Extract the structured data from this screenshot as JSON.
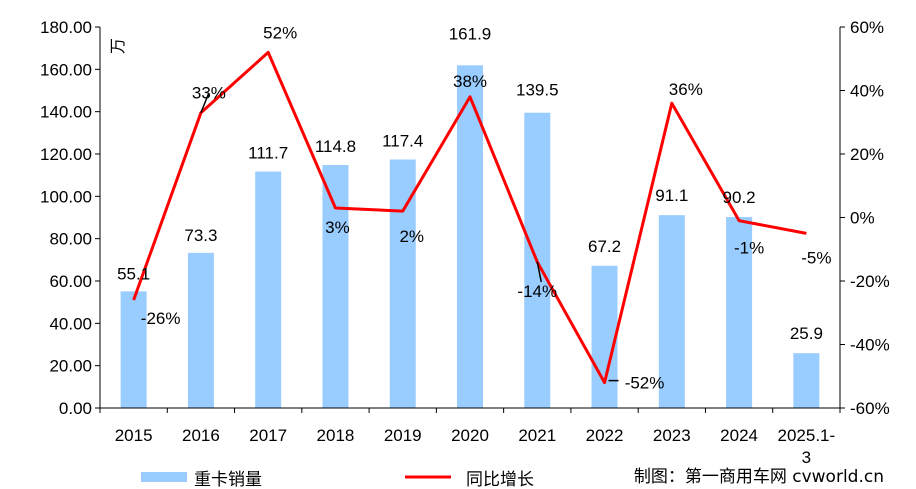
{
  "chart_data": {
    "type": "bar",
    "categories": [
      "2015",
      "2016",
      "2017",
      "2018",
      "2019",
      "2020",
      "2021",
      "2022",
      "2023",
      "2024",
      "2025.1-3"
    ],
    "series": [
      {
        "name": "重卡销量",
        "type": "bar",
        "axis": "left",
        "color": "#99CCFF",
        "values": [
          55.1,
          73.3,
          111.7,
          114.8,
          117.4,
          161.9,
          139.5,
          67.2,
          91.1,
          90.2,
          25.9
        ],
        "labels": [
          "55.1",
          "73.3",
          "111.7",
          "114.8",
          "117.4",
          "161.9",
          "139.5",
          "67.2",
          "91.1",
          "90.2",
          "25.9"
        ]
      },
      {
        "name": "同比增长",
        "type": "line",
        "axis": "right",
        "color": "#FF0000",
        "values": [
          -26,
          33,
          52,
          3,
          2,
          38,
          -14,
          -52,
          36,
          -1,
          -5
        ],
        "labels": [
          "-26%",
          "33%",
          "52%",
          "3%",
          "2%",
          "38%",
          "-14%",
          "-52%",
          "36%",
          "-1%",
          "-5%"
        ]
      }
    ],
    "y_left": {
      "unit": "万",
      "ylim": [
        0,
        180
      ],
      "ticks": [
        "0.00",
        "20.00",
        "40.00",
        "60.00",
        "80.00",
        "100.00",
        "120.00",
        "140.00",
        "160.00",
        "180.00"
      ]
    },
    "y_right": {
      "ylim": [
        -60,
        60
      ],
      "ticks": [
        "-60%",
        "-40%",
        "-20%",
        "0%",
        "20%",
        "40%",
        "60%"
      ]
    },
    "grid": false,
    "legend": "bottom",
    "source": "制图：第一商用车网 cvworld.cn"
  }
}
